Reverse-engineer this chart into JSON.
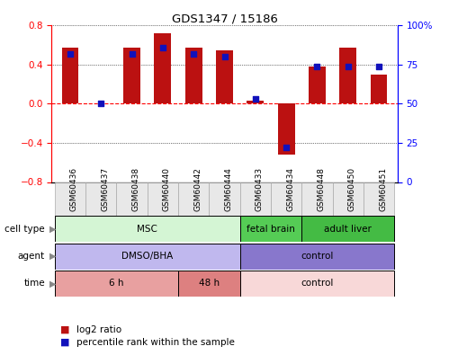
{
  "title": "GDS1347 / 15186",
  "samples": [
    "GSM60436",
    "GSM60437",
    "GSM60438",
    "GSM60440",
    "GSM60442",
    "GSM60444",
    "GSM60433",
    "GSM60434",
    "GSM60448",
    "GSM60450",
    "GSM60451"
  ],
  "log2_ratio": [
    0.57,
    0.0,
    0.57,
    0.72,
    0.57,
    0.55,
    0.03,
    -0.52,
    0.38,
    0.57,
    0.3
  ],
  "percentile_rank": [
    82,
    50,
    82,
    86,
    82,
    80,
    53,
    22,
    74,
    74,
    74
  ],
  "bar_color": "#bb1111",
  "dot_color": "#1111bb",
  "ylim_left": [
    -0.8,
    0.8
  ],
  "ylim_right": [
    0,
    100
  ],
  "yticks_left": [
    -0.8,
    -0.4,
    0.0,
    0.4,
    0.8
  ],
  "yticks_right": [
    0,
    25,
    50,
    75,
    100
  ],
  "ytick_labels_right": [
    "0",
    "25",
    "50",
    "75",
    "100%"
  ],
  "cell_type_groups": [
    {
      "label": "MSC",
      "start": 0,
      "end": 6,
      "color": "#d4f5d4"
    },
    {
      "label": "fetal brain",
      "start": 6,
      "end": 8,
      "color": "#55cc55"
    },
    {
      "label": "adult liver",
      "start": 8,
      "end": 11,
      "color": "#44bb44"
    }
  ],
  "agent_groups": [
    {
      "label": "DMSO/BHA",
      "start": 0,
      "end": 6,
      "color": "#c0b8ee"
    },
    {
      "label": "control",
      "start": 6,
      "end": 11,
      "color": "#8877cc"
    }
  ],
  "time_groups": [
    {
      "label": "6 h",
      "start": 0,
      "end": 4,
      "color": "#e8a0a0"
    },
    {
      "label": "48 h",
      "start": 4,
      "end": 6,
      "color": "#dd8080"
    },
    {
      "label": "control",
      "start": 6,
      "end": 11,
      "color": "#f8d8d8"
    }
  ],
  "row_labels": [
    "cell type",
    "agent",
    "time"
  ],
  "bar_width": 0.55
}
